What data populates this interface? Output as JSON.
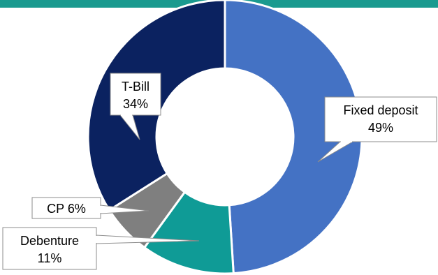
{
  "colors": {
    "top_bar": "#1a9a8f",
    "background": "#ffffff"
  },
  "chart_data": {
    "type": "pie",
    "donut": true,
    "title": "",
    "legend": "none",
    "slices": [
      {
        "label": "Fixed deposit",
        "value": 49,
        "display": "49%",
        "color": "#4472c4"
      },
      {
        "label": "Debenture",
        "value": 11,
        "display": "11%",
        "color": "#0f9b96"
      },
      {
        "label": "CP",
        "value": 6,
        "display": "6%",
        "color": "#7f7f7f"
      },
      {
        "label": "T-Bill",
        "value": 34,
        "display": "34%",
        "color": "#0b2260"
      }
    ]
  }
}
